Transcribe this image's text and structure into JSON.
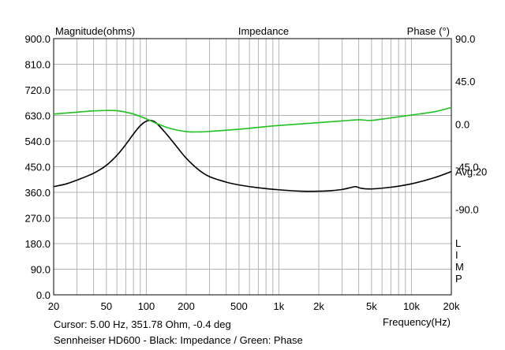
{
  "chart_data": {
    "type": "line",
    "title": "Impedance",
    "ylabel_left": "Magnitude(ohms)",
    "ylabel_right": "Phase (°)",
    "xlabel": "Frequency(Hz)",
    "x_scale": "log",
    "xlim": [
      20,
      20000
    ],
    "ylim_left": [
      0,
      900
    ],
    "ylim_right": [
      -180,
      90
    ],
    "grid": true,
    "x_ticks": [
      20,
      50,
      100,
      200,
      500,
      1000,
      2000,
      5000,
      10000,
      20000
    ],
    "x_tick_labels": [
      "20",
      "50",
      "100",
      "200",
      "500",
      "1k",
      "2k",
      "5k",
      "10k",
      "20k"
    ],
    "y_left_ticks": [
      0,
      90,
      180,
      270,
      360,
      450,
      540,
      630,
      720,
      810,
      900
    ],
    "y_left_tick_labels": [
      "0.0",
      "90.0",
      "180.0",
      "270.0",
      "360.0",
      "450.0",
      "540.0",
      "630.0",
      "720.0",
      "810.0",
      "900.0"
    ],
    "y_right_ticks": [
      90,
      45,
      0,
      -45,
      -90
    ],
    "y_right_tick_labels": [
      "90.0",
      "45.0",
      "0.0",
      "-45.0",
      "-90.0"
    ],
    "avg_label": "Avg:20",
    "lim_label": [
      "L",
      "I",
      "M",
      "P"
    ],
    "series": [
      {
        "name": "Impedance",
        "color": "#000000",
        "axis": "left",
        "x": [
          20,
          25,
          30,
          40,
          50,
          60,
          70,
          80,
          90,
          100,
          110,
          120,
          140,
          170,
          200,
          250,
          300,
          400,
          500,
          700,
          1000,
          1500,
          2000,
          2500,
          3000,
          3500,
          3800,
          4200,
          5000,
          7000,
          10000,
          15000,
          20000
        ],
        "values": [
          380,
          390,
          403,
          427,
          455,
          490,
          528,
          565,
          594,
          610,
          612,
          602,
          568,
          520,
          480,
          438,
          415,
          396,
          386,
          376,
          369,
          364,
          364,
          366,
          370,
          377,
          380,
          374,
          372,
          378,
          390,
          412,
          433
        ]
      },
      {
        "name": "Phase",
        "color": "#22c022",
        "axis": "right",
        "x": [
          20,
          30,
          40,
          50,
          60,
          70,
          80,
          100,
          120,
          150,
          200,
          250,
          300,
          500,
          700,
          1000,
          2000,
          3000,
          4000,
          5000,
          7000,
          10000,
          15000,
          20000
        ],
        "values": [
          10.5,
          12.5,
          13.8,
          14.3,
          14.0,
          12.5,
          10.5,
          5.5,
          0.5,
          -4.5,
          -8.0,
          -8.3,
          -7.8,
          -5.5,
          -3.5,
          -1.5,
          1.5,
          3.3,
          4.5,
          3.8,
          6.5,
          9.5,
          13.0,
          17.5
        ]
      }
    ]
  },
  "cursor_text": "Cursor: 5.00 Hz, 351.78 Ohm, -0.4 deg",
  "legend_text": "Sennheiser HD600 - Black: Impedance / Green: Phase"
}
